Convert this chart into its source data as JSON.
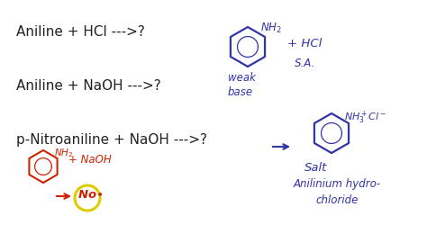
{
  "bg_color": "#ffffff",
  "text_color_blue": "#3333aa",
  "text_color_dark": "#222222",
  "text_color_red": "#cc2200",
  "text_color_yellow": "#ddcc00",
  "line1": "Aniline + HCl --->?",
  "line2": "Aniline + NaOH --->?",
  "line3": "p-Nitroaniline + NaOH --->?",
  "font_size_main": 11,
  "font_size_small": 8.5,
  "font_size_tiny": 7.5
}
